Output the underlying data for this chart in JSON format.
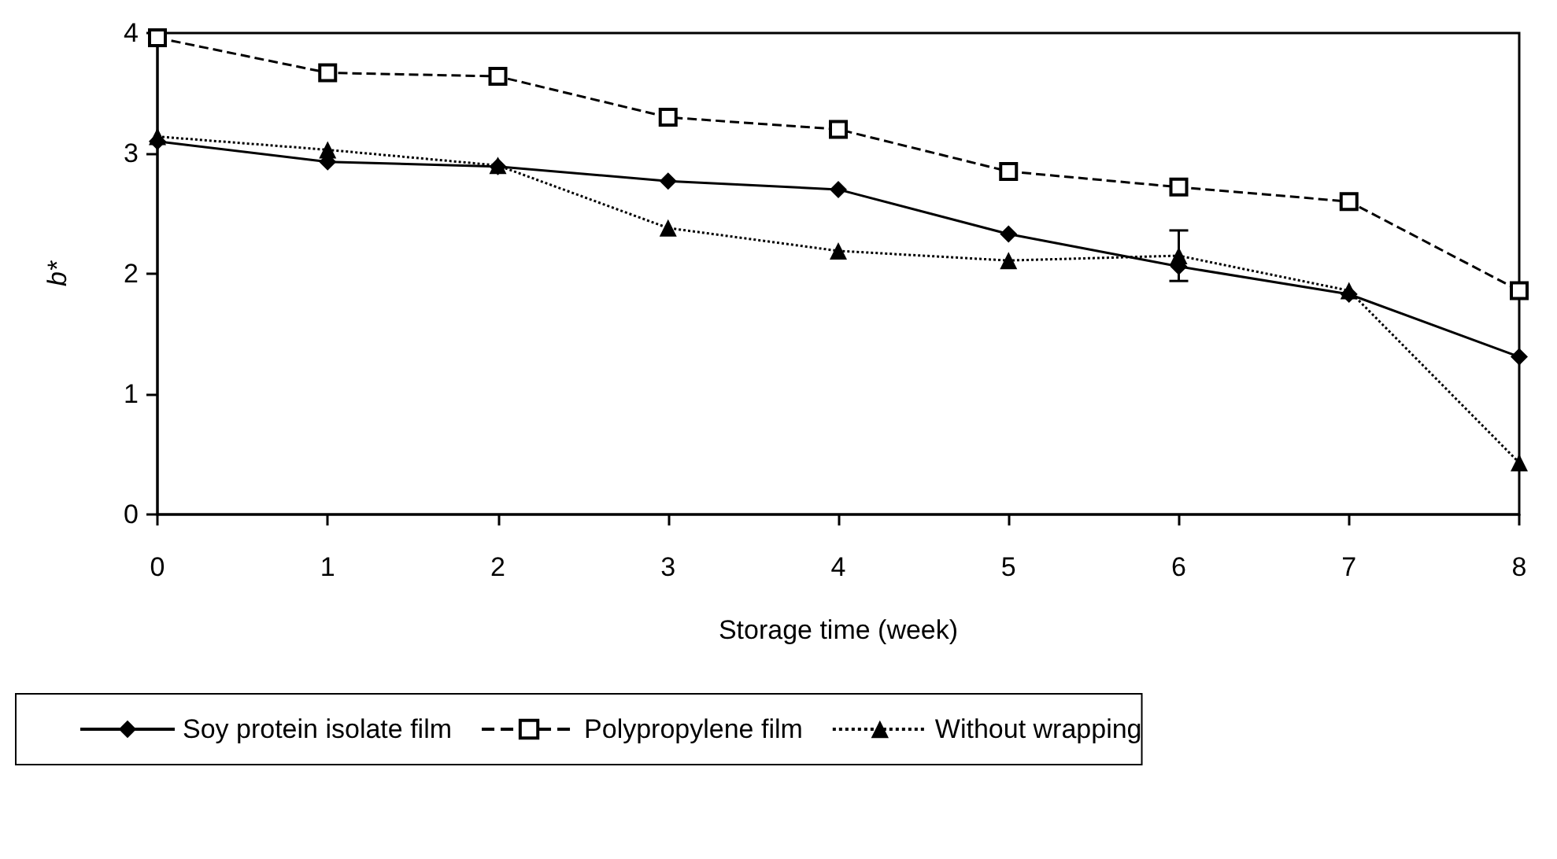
{
  "chart_data": {
    "type": "line",
    "xlabel": "Storage time (week)",
    "ylabel": "b*",
    "x": [
      0,
      1,
      2,
      3,
      4,
      5,
      6,
      7,
      8
    ],
    "xlim": [
      0,
      8
    ],
    "xticks": [
      0,
      1,
      2,
      3,
      4,
      5,
      6,
      7,
      8
    ],
    "ylim": [
      0,
      4
    ],
    "yticks": [
      0,
      1,
      2,
      3,
      4
    ],
    "grid": false,
    "legend": "bottom",
    "series": [
      {
        "name": "Soy protein isolate film",
        "color": "#000000",
        "marker": "diamond",
        "line_style": "solid",
        "values": [
          3.1,
          2.93,
          2.89,
          2.77,
          2.7,
          2.33,
          2.06,
          1.83,
          1.31
        ]
      },
      {
        "name": "Polypropylene film",
        "color": "#000000",
        "marker": "square",
        "line_style": "dashed",
        "values": [
          3.96,
          3.67,
          3.64,
          3.3,
          3.2,
          2.85,
          2.72,
          2.6,
          1.86
        ]
      },
      {
        "name": "Without wrapping",
        "color": "#000000",
        "marker": "triangle",
        "line_style": "dotted",
        "values": [
          3.14,
          3.03,
          2.9,
          2.38,
          2.19,
          2.11,
          2.15,
          1.86,
          0.43
        ],
        "errors": [
          null,
          null,
          null,
          null,
          null,
          null,
          0.21,
          null,
          null
        ]
      }
    ]
  }
}
